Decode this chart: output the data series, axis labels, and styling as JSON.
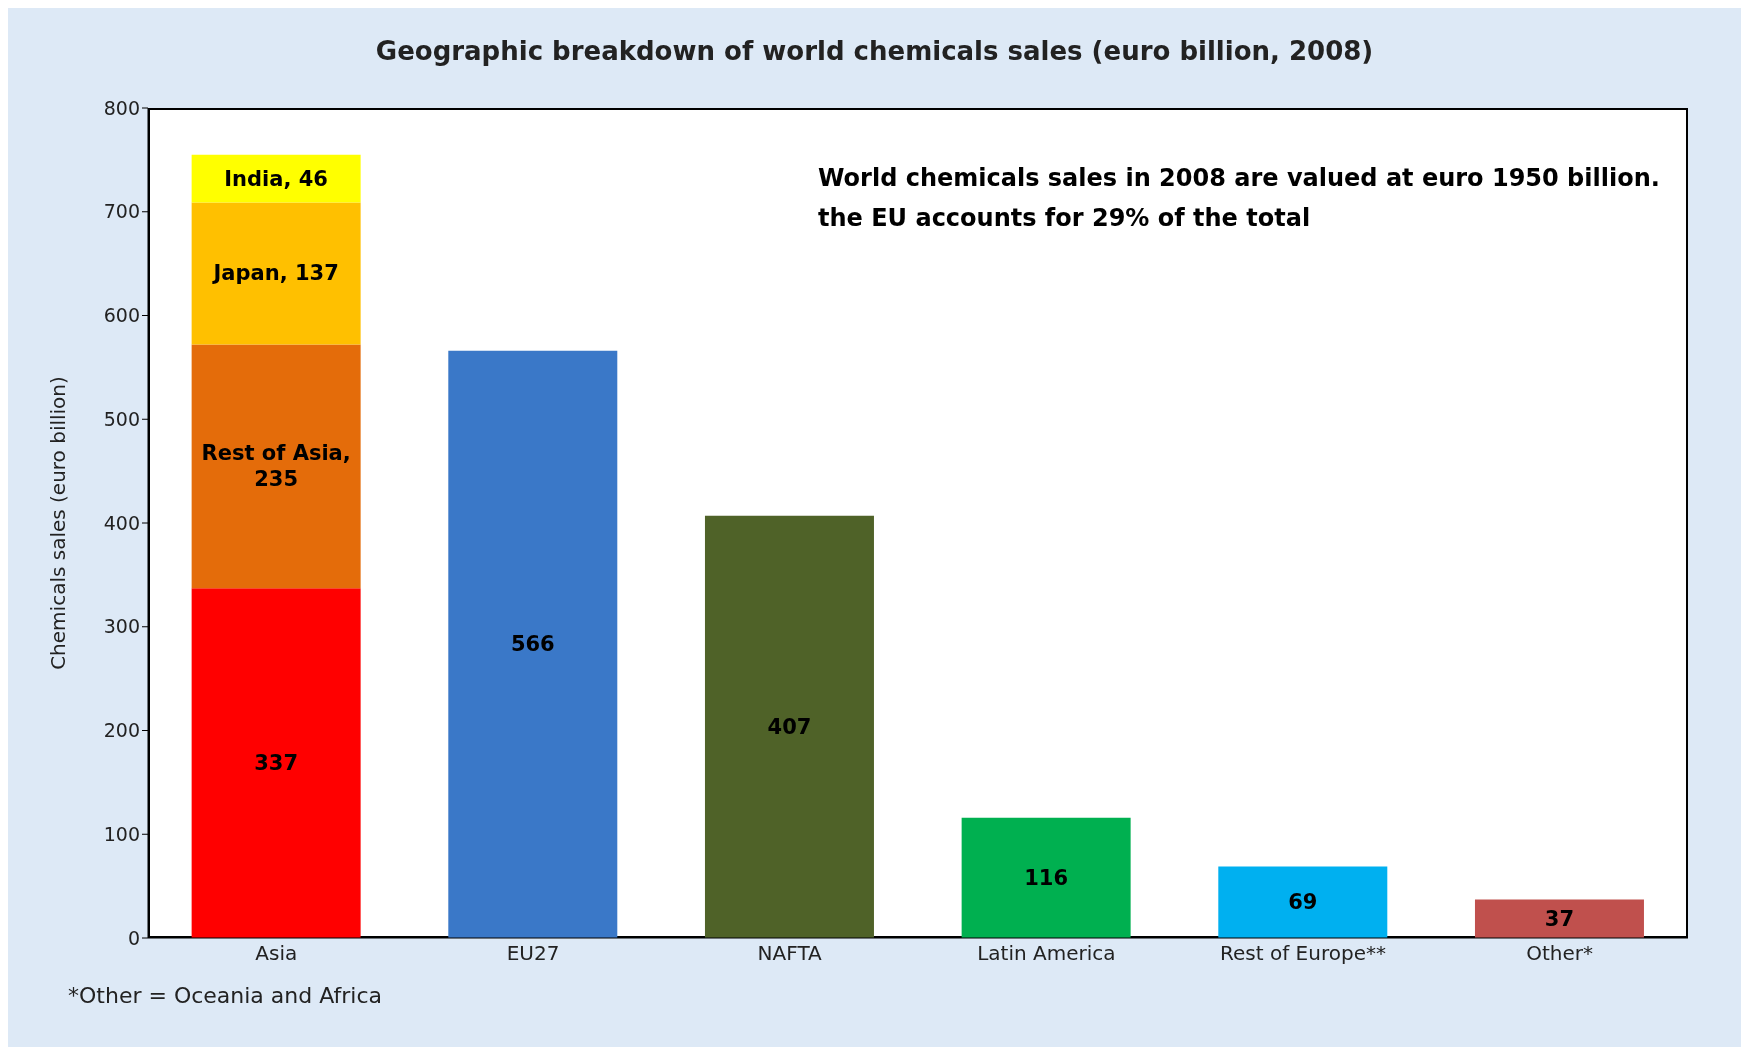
{
  "chart_data": {
    "type": "bar",
    "title": "Geographic breakdown of world chemicals sales (euro billion,  2008)",
    "ylabel": "Chemicals sales (euro billion)",
    "categories": [
      "Asia",
      "EU27",
      "NAFTA",
      "Latin America",
      "Rest of Europe**",
      "Other*"
    ],
    "stacked": true,
    "series": [
      {
        "colors": [
          "#ff0000",
          "#3a78c8",
          "#4f6228",
          "#00b050",
          "#00b0f0",
          "#c0504d"
        ],
        "values": [
          337,
          566,
          407,
          116,
          69,
          37
        ],
        "value_labels": [
          "337",
          "566",
          "407",
          "116",
          "69",
          "37"
        ]
      },
      {
        "color": "#e46c0a",
        "values": [
          235,
          null,
          null,
          null,
          null,
          null
        ],
        "value_labels": [
          "Rest of Asia, 235",
          null,
          null,
          null,
          null,
          null
        ]
      },
      {
        "color": "#ffc000",
        "values": [
          137,
          null,
          null,
          null,
          null,
          null
        ],
        "value_labels": [
          "Japan, 137",
          null,
          null,
          null,
          null,
          null
        ]
      },
      {
        "color": "#ffff00",
        "values": [
          46,
          null,
          null,
          null,
          null,
          null
        ],
        "value_labels": [
          "India, 46",
          null,
          null,
          null,
          null,
          null
        ]
      }
    ],
    "ylim": [
      0,
      800
    ],
    "yticks": [
      0,
      100,
      200,
      300,
      400,
      500,
      600,
      700,
      800
    ],
    "grid": false,
    "legend": false,
    "annotations": [
      "World chemicals sales in 2008 are valued at euro 1950 billion.",
      "the EU accounts for  29% of the total",
      "*Other = Oceania and Africa"
    ]
  }
}
